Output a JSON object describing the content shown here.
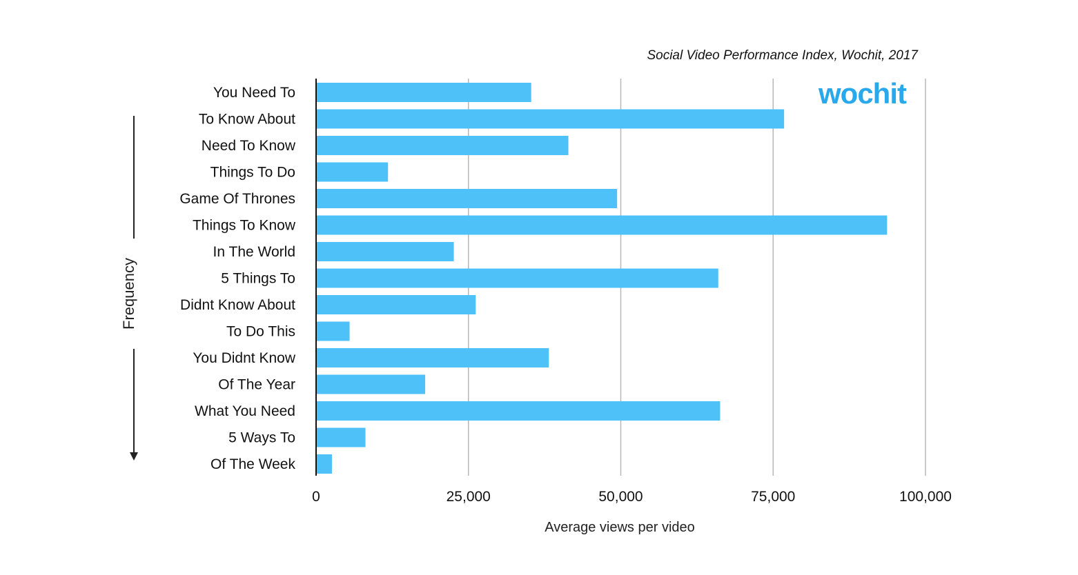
{
  "source_note": "Social Video Performance Index, Wochit, 2017",
  "logo_text": "wochit",
  "colors": {
    "bar": "#4FC1F9",
    "grid": "#b7b7b7",
    "axis": "#111111",
    "logo": "#29A9EB"
  },
  "chart_data": {
    "type": "bar",
    "orientation": "horizontal",
    "categories": [
      "You Need To",
      "To Know About",
      "Need To Know",
      "Things To Do",
      "Game Of Thrones",
      "Things To Know",
      "In The World",
      "5 Things To",
      "Didnt Know About",
      "To Do This",
      "You Didnt Know",
      "Of The Year",
      "What You Need",
      "5 Ways To",
      "Of The Week"
    ],
    "values": [
      35300,
      76800,
      41400,
      11800,
      49400,
      93700,
      22600,
      66000,
      26200,
      5500,
      38200,
      17900,
      66300,
      8100,
      2600
    ],
    "xlabel": "Average views per video",
    "ylabel": "Frequency",
    "xlim": [
      0,
      100000
    ],
    "xticks": [
      "0",
      "25,000",
      "50,000",
      "75,000",
      "100,000"
    ],
    "grid": "vertical"
  }
}
